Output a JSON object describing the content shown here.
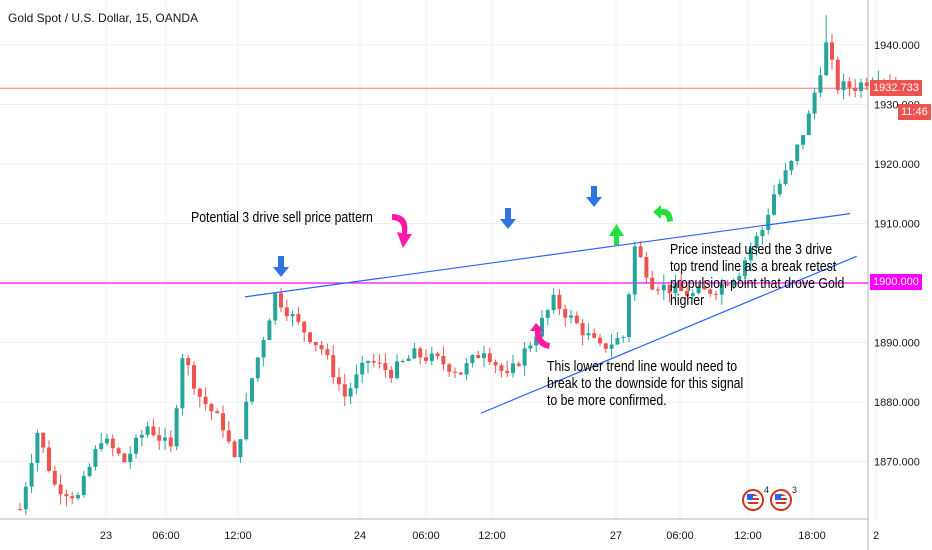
{
  "header": {
    "symbol_title": "Gold Spot / U.S. Dollar, 15, OANDA"
  },
  "chart_data": {
    "type": "candlestick",
    "title": "Gold Spot / U.S. Dollar, 15, OANDA",
    "x_tick_labels": [
      "23",
      "06:00",
      "12:00",
      "24",
      "06:00",
      "12:00",
      "27",
      "06:00",
      "12:00",
      "18:00",
      "2"
    ],
    "y_tick_labels": [
      "1870.000",
      "1880.000",
      "1890.000",
      "1900.000",
      "1910.000",
      "1920.000",
      "1930.000",
      "1940.000"
    ],
    "ylim": [
      1862,
      1948
    ],
    "grid": true,
    "price_tags": {
      "current_price": "1932.733",
      "countdown": "11:46",
      "level": "1900.000"
    },
    "colors": {
      "up": "#26a69a",
      "down": "#ef5350",
      "level_line": "#ff00ff",
      "trend_line": "#2962ff",
      "current_line": "#ef5350"
    },
    "close_path": [
      [
        0,
        1862
      ],
      [
        3,
        1875
      ],
      [
        6,
        1866
      ],
      [
        10,
        1864
      ],
      [
        14,
        1874
      ],
      [
        18,
        1870
      ],
      [
        22,
        1876
      ],
      [
        26,
        1872
      ],
      [
        28,
        1888
      ],
      [
        31,
        1881
      ],
      [
        35,
        1876
      ],
      [
        37,
        1870
      ],
      [
        40,
        1884
      ],
      [
        44,
        1898
      ],
      [
        48,
        1893
      ],
      [
        52,
        1889
      ],
      [
        56,
        1881
      ],
      [
        60,
        1887
      ],
      [
        64,
        1885
      ],
      [
        68,
        1888
      ],
      [
        72,
        1887
      ],
      [
        76,
        1885
      ],
      [
        80,
        1889
      ],
      [
        84,
        1884
      ],
      [
        88,
        1890
      ],
      [
        92,
        1897
      ],
      [
        96,
        1893
      ],
      [
        100,
        1889
      ],
      [
        104,
        1891
      ],
      [
        106,
        1906
      ],
      [
        109,
        1900
      ],
      [
        112,
        1899
      ],
      [
        116,
        1898
      ],
      [
        120,
        1899
      ],
      [
        124,
        1902
      ],
      [
        126,
        1906
      ],
      [
        128,
        1909
      ],
      [
        130,
        1915
      ],
      [
        133,
        1920
      ],
      [
        136,
        1928
      ],
      [
        139,
        1940
      ],
      [
        141,
        1933
      ],
      [
        144,
        1933
      ],
      [
        148,
        1935
      ],
      [
        151,
        1933
      ]
    ],
    "drawings": {
      "upper_trend_line": [
        [
          50,
          1898
        ],
        [
          140,
          1912
        ]
      ],
      "lower_trend_line": [
        [
          96,
          1885
        ],
        [
          137,
          1907
        ]
      ],
      "horizontal_level": 1900.0,
      "current_price_level": 1932.733
    },
    "annotations": [
      "Potential 3 drive sell price pattern",
      "Price instead used the 3 drive\ntop trend line as a break retest\npropulsion point that drove Gold\nhigher",
      "This lower trend line would need to\nbreak to the downside for this signal\nto be more confirmed."
    ],
    "event_badges": [
      {
        "icon": "us-flag-icon",
        "count": "4"
      },
      {
        "icon": "us-flag-icon",
        "count": "3"
      }
    ]
  }
}
